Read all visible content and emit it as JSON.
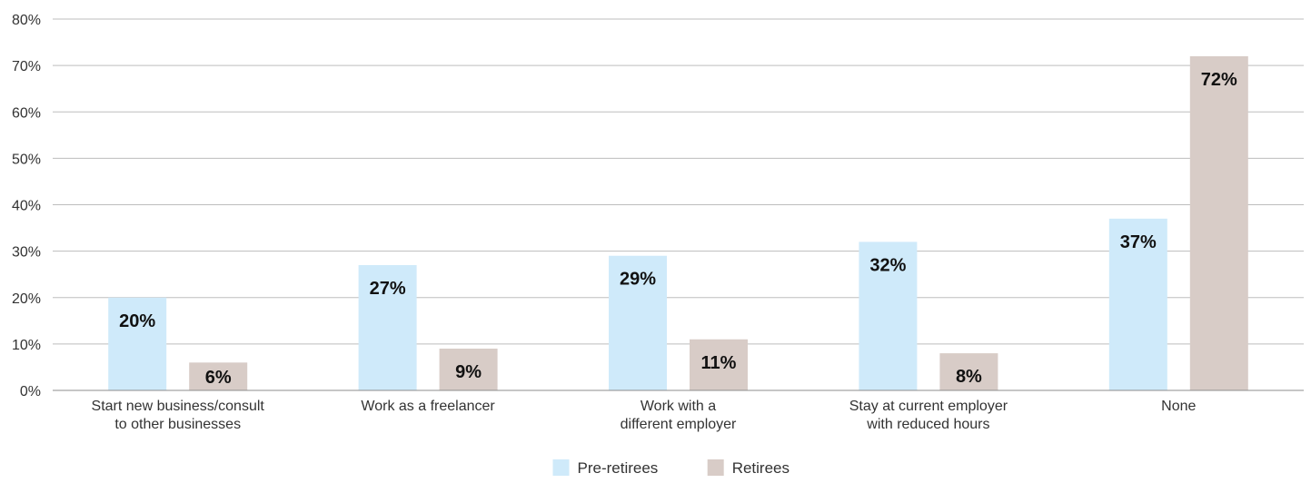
{
  "chart_data": {
    "type": "bar",
    "title": "",
    "xlabel": "",
    "ylabel": "",
    "ylim": [
      0,
      80
    ],
    "ytick_step": 10,
    "ytick_suffix": "%",
    "grid": true,
    "legend_position": "bottom-center",
    "categories": [
      [
        "Start new business/consult",
        "to other businesses"
      ],
      [
        "Work as a freelancer"
      ],
      [
        "Work with a",
        "different employer"
      ],
      [
        "Stay at current employer",
        "with reduced hours"
      ],
      [
        "None"
      ]
    ],
    "series": [
      {
        "name": "Pre-retirees",
        "color": "#cfeafa",
        "values": [
          20,
          27,
          29,
          32,
          37
        ]
      },
      {
        "name": "Retirees",
        "color": "#d8ccc7",
        "values": [
          6,
          9,
          11,
          8,
          72
        ]
      }
    ],
    "data_labels": [
      [
        "20%",
        "27%",
        "29%",
        "32%",
        "37%"
      ],
      [
        "6%",
        "9%",
        "11%",
        "8%",
        "72%"
      ]
    ]
  }
}
